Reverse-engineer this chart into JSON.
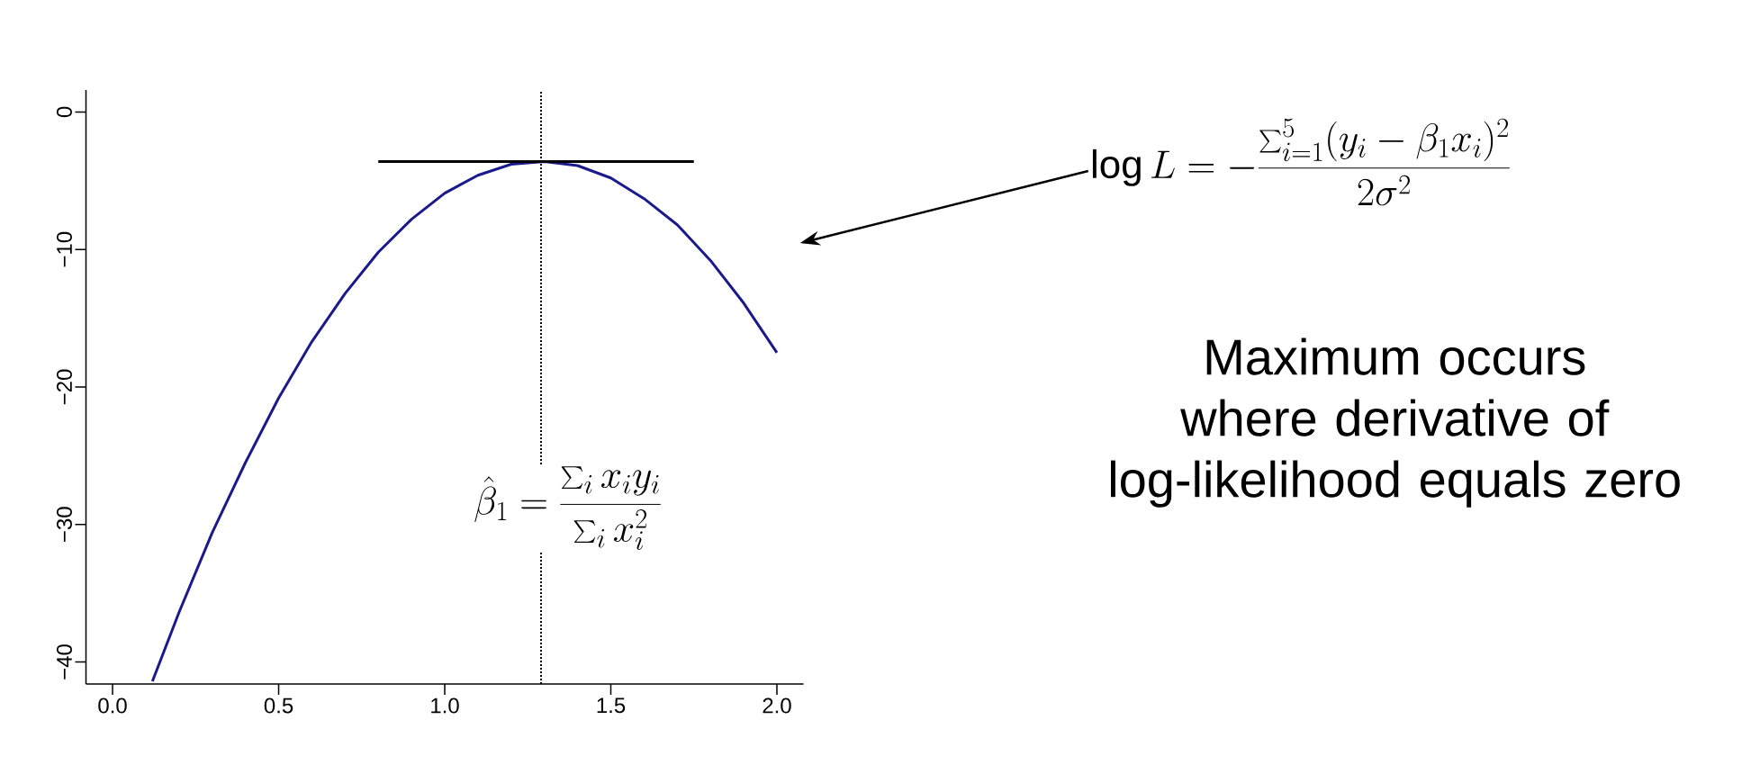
{
  "chart_data": {
    "type": "line",
    "x": [
      0.12,
      0.2,
      0.3,
      0.4,
      0.5,
      0.6,
      0.7,
      0.8,
      0.9,
      1.0,
      1.1,
      1.2,
      1.3,
      1.4,
      1.5,
      1.6,
      1.7,
      1.8,
      1.9,
      2.0
    ],
    "series": [
      {
        "color": "#1a1a8c",
        "values": [
          -41.4,
          -36.4,
          -30.6,
          -25.5,
          -20.8,
          -16.7,
          -13.2,
          -10.2,
          -7.8,
          -5.9,
          -4.6,
          -3.8,
          -3.6,
          -3.9,
          -4.8,
          -6.3,
          -8.2,
          -10.8,
          -13.9,
          -17.5
        ]
      },
      {
        "color": "#000000",
        "x": [
          0.8,
          1.75
        ],
        "values": [
          -3.6,
          -3.6
        ]
      }
    ],
    "ref_lines": [
      {
        "axis": "x",
        "value": 1.29,
        "color": "#000000",
        "line_style": "dotted"
      }
    ],
    "xlim": [
      -0.08,
      2.08
    ],
    "ylim": [
      -41.6,
      1.6
    ],
    "xticks": [
      {
        "value": 0,
        "label": "0.0"
      },
      {
        "value": 0.5,
        "label": "0.5"
      },
      {
        "value": 1,
        "label": "1.0"
      },
      {
        "value": 1.5,
        "label": "1.5"
      },
      {
        "value": 2,
        "label": "2.0"
      }
    ],
    "yticks": [
      {
        "value": -40,
        "label": "−40"
      },
      {
        "value": -30,
        "label": "−30"
      },
      {
        "value": -20,
        "label": "−20"
      },
      {
        "value": -10,
        "label": "−10"
      },
      0
    ],
    "annotations": [
      "\\log L = -\\frac{\\sum_{i=1}^{5}(y_i-\\beta_1 x_i)^2}{2\\sigma^2}",
      "\\hat{\\beta}_1 = \\frac{\\sum_i x_i y_i}{\\sum_i x_i^2}",
      "Maximum occurs where derivative of log-likelihood equals zero"
    ]
  }
}
